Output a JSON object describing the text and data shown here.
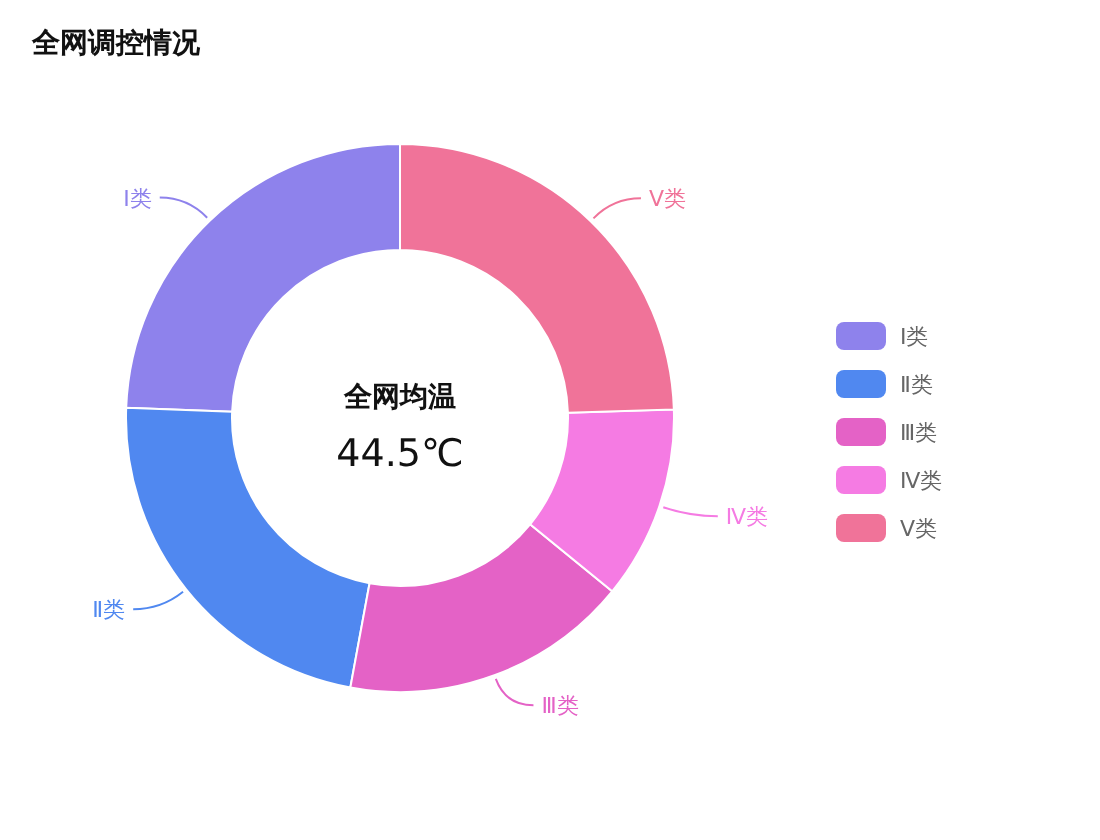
{
  "chart_data": {
    "type": "donut",
    "title": "全网调控情况",
    "categories": [
      "Ⅰ类",
      "Ⅱ类",
      "Ⅲ类",
      "Ⅳ类",
      "Ⅴ类"
    ],
    "values": [
      24.4,
      22.7,
      17,
      11.4,
      24.5
    ],
    "colors": [
      "#8e82ec",
      "#5088f0",
      "#e462c6",
      "#f57be3",
      "#f07399"
    ],
    "annotations": [
      "全网均温",
      "44.5℃"
    ],
    "legend": "right"
  }
}
